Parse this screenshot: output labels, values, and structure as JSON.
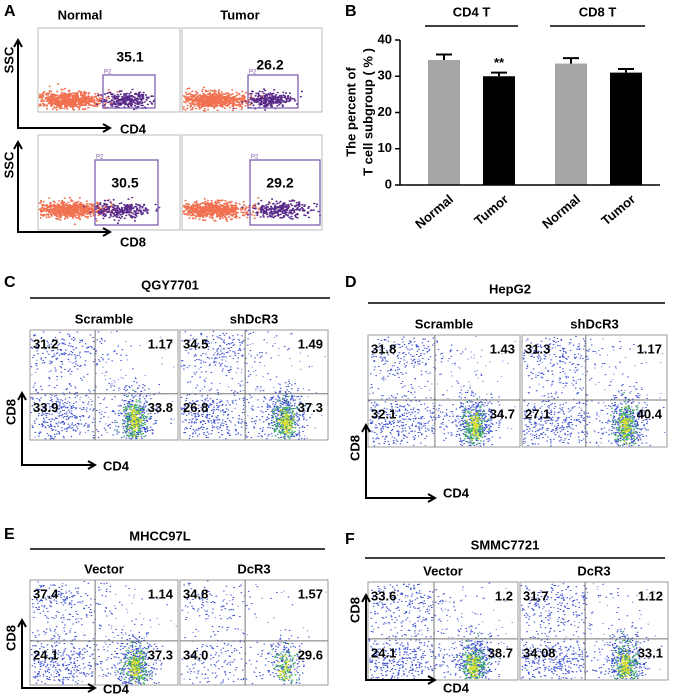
{
  "panel_a": {
    "label": "A",
    "y_axis": "SSC",
    "rows": [
      {
        "x_axis": "CD4",
        "plots": [
          {
            "title": "Normal",
            "gate_name": "P2",
            "gate_value": "35.1"
          },
          {
            "title": "Tumor",
            "gate_name": "P2",
            "gate_value": "26.2"
          }
        ]
      },
      {
        "x_axis": "CD8",
        "plots": [
          {
            "gate_name": "P2",
            "gate_value": "30.5"
          },
          {
            "gate_name": "P2",
            "gate_value": "29.2"
          }
        ]
      }
    ]
  },
  "chart_data": {
    "type": "bar",
    "label": "B",
    "y_label": [
      "The percent of",
      "T cell subgroup ( % )"
    ],
    "groups": [
      "CD4 T",
      "CD8 T"
    ],
    "categories": [
      "Normal",
      "Tumor",
      "Normal",
      "Tumor"
    ],
    "values": [
      34.5,
      30,
      33.5,
      31
    ],
    "errors": [
      1.5,
      1,
      1.5,
      1
    ],
    "colors": [
      "#a6a6a6",
      "#000000",
      "#a6a6a6",
      "#000000"
    ],
    "annotation": "**",
    "ylim": [
      0,
      40
    ],
    "yticks": [
      0,
      10,
      20,
      30,
      40
    ]
  },
  "flow_panels": [
    {
      "label": "C",
      "title": "QGY7701",
      "x_axis": "CD4",
      "y_axis": "CD8",
      "plots": [
        {
          "title": "Scramble",
          "quadrants": [
            "31.2",
            "1.17",
            "33.9",
            "33.8"
          ]
        },
        {
          "title": "shDcR3",
          "quadrants": [
            "34.5",
            "1.49",
            "26.8",
            "37.3"
          ]
        }
      ]
    },
    {
      "label": "D",
      "title": "HepG2",
      "x_axis": "CD4",
      "y_axis": "CD8",
      "plots": [
        {
          "title": "Scramble",
          "quadrants": [
            "31.8",
            "1.43",
            "32.1",
            "34.7"
          ]
        },
        {
          "title": "shDcR3",
          "quadrants": [
            "31.3",
            "1.17",
            "27.1",
            "40.4"
          ]
        }
      ]
    },
    {
      "label": "E",
      "title": "MHCC97L",
      "x_axis": "CD4",
      "y_axis": "CD8",
      "plots": [
        {
          "title": "Vector",
          "quadrants": [
            "37.4",
            "1.14",
            "24.1",
            "37.3"
          ]
        },
        {
          "title": "DcR3",
          "quadrants": [
            "34.8",
            "1.57",
            "34.0",
            "29.6"
          ]
        }
      ]
    },
    {
      "label": "F",
      "title": "SMMC7721",
      "x_axis": "CD4",
      "y_axis": "CD8",
      "plots": [
        {
          "title": "Vector",
          "quadrants": [
            "33.6",
            "1.2",
            "24.1",
            "38.7"
          ]
        },
        {
          "title": "DcR3",
          "quadrants": [
            "31.7",
            "1.12",
            "34.08",
            "33.1"
          ]
        }
      ]
    }
  ]
}
